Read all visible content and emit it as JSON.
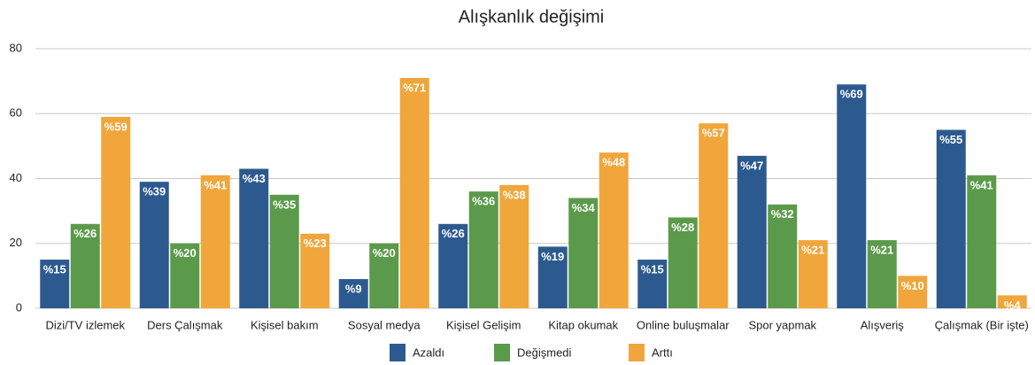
{
  "chart_data": {
    "type": "bar",
    "title": "Alışkanlık değişimi",
    "categories": [
      "Dizi/TV izlemek",
      "Ders Çalışmak",
      "Kişisel bakım",
      "Sosyal medya",
      "Kişisel Gelişim",
      "Kitap okumak",
      "Online buluşmalar",
      "Spor yapmak",
      "Alışveriş",
      "Çalışmak (Bir işte)"
    ],
    "series": [
      {
        "name": "Azaldı",
        "color": "#2d5a8e",
        "values": [
          15,
          39,
          43,
          9,
          26,
          19,
          15,
          47,
          69,
          55
        ],
        "value_labels": [
          "%15",
          "%39",
          "%43",
          "%9",
          "%26",
          "%19",
          "%15",
          "%47",
          "%69",
          "%55"
        ]
      },
      {
        "name": "Değişmedi",
        "color": "#5b9a4a",
        "values": [
          26,
          20,
          35,
          20,
          36,
          34,
          28,
          32,
          21,
          41
        ],
        "value_labels": [
          "%26",
          "%20",
          "%35",
          "%20",
          "%36",
          "%34",
          "%28",
          "%32",
          "%21",
          "%41"
        ]
      },
      {
        "name": "Arttı",
        "color": "#f0a63b",
        "values": [
          59,
          41,
          23,
          71,
          38,
          48,
          57,
          21,
          10,
          4
        ],
        "value_labels": [
          "%59",
          "%41",
          "%23",
          "%71",
          "%38",
          "%48",
          "%57",
          "%21",
          "%10",
          "%4"
        ]
      }
    ],
    "ylim": [
      0,
      80
    ],
    "yticks": [
      0,
      20,
      40,
      60,
      80
    ],
    "grid": true
  }
}
